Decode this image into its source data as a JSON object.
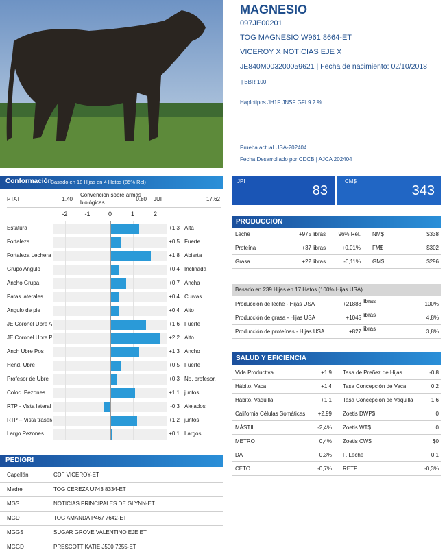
{
  "animal": {
    "name": "MAGNESIO",
    "code": "097JE00201",
    "registered_name": "TOG MAGNESIO W961 8664-ET",
    "sire_line": "VICEROY X NOTICIAS EJE X",
    "id_birth": "JE840M003200059621 | Fecha de nacimiento: 02/10/2018",
    "bbr": "|  BBR 100",
    "haplotypes": "Haplotipos JH1F JNSF GFI 9.2 %",
    "test": "Prueba actual USA-202404",
    "developed": "Fecha Desarrollado por CDCB | AJCA 202404"
  },
  "conformation": {
    "title": "Conformación",
    "subtitle": "Basado en 18 Hijas en 4 Hatos (85% Rel)",
    "ptat_label": "PTAT",
    "ptat": "1.40",
    "convention_label": "Convención sobre armas biológicas",
    "convention": "0.80",
    "jui_label": "JUI",
    "jui": "17.62",
    "xlim": [
      -2.5,
      2.5
    ],
    "xticks": [
      -2,
      -1,
      0,
      1,
      2
    ],
    "traits": [
      {
        "name": "Estatura",
        "value": 1.3,
        "label": "+1.3",
        "desc": "Alta"
      },
      {
        "name": "Fortaleza",
        "value": 0.5,
        "label": "+0.5",
        "desc": "Fuerte"
      },
      {
        "name": "Fortaleza Lechera",
        "value": 1.8,
        "label": "+1.8",
        "desc": "Abierta"
      },
      {
        "name": "Grupo Angulo",
        "value": 0.4,
        "label": "+0.4",
        "desc": "Inclinada"
      },
      {
        "name": "Ancho Grupa",
        "value": 0.7,
        "label": "+0.7",
        "desc": "Ancha"
      },
      {
        "name": "Patas laterales",
        "value": 0.4,
        "label": "+0.4",
        "desc": "Curvas"
      },
      {
        "name": "Angulo de pie",
        "value": 0.4,
        "label": "+0.4",
        "desc": "Alto"
      },
      {
        "name": "JE Coronel Ubre Ar",
        "value": 1.6,
        "label": "+1.6",
        "desc": "Fuerte"
      },
      {
        "name": "JE Coronel Ubre Po",
        "value": 2.2,
        "label": "+2.2",
        "desc": "Alto"
      },
      {
        "name": "Anch Ubre Pos",
        "value": 1.3,
        "label": "+1.3",
        "desc": "Ancho"
      },
      {
        "name": "Hend. Ubre",
        "value": 0.5,
        "label": "+0.5",
        "desc": "Fuerte"
      },
      {
        "name": "Profesor de Ubre",
        "value": 0.3,
        "label": "+0.3",
        "desc": "No. profesor."
      },
      {
        "name": "Coloc. Pezones",
        "value": 1.1,
        "label": "+1.1",
        "desc": "juntos"
      },
      {
        "name": "RTP - Vista lateral",
        "value": -0.3,
        "label": "-0.3",
        "desc": "Alejados"
      },
      {
        "name": "RTP – Vista trasera",
        "value": 1.2,
        "label": "+1.2",
        "desc": "juntos"
      },
      {
        "name": "Largo Pezones",
        "value": 0.1,
        "label": "+0.1",
        "desc": "Largos"
      }
    ]
  },
  "pedigree": {
    "title": "PEDIGRÍ",
    "rows": [
      [
        "Capellán",
        "CDF VICEROY-ET"
      ],
      [
        "Madre",
        "TOG CEREZA U743 8334-ET"
      ],
      [
        "MGS",
        "NOTICIAS PRINCIPALES DE GLYNN-ET"
      ],
      [
        "MGD",
        "TOG AMANDA P467 7642-ET"
      ],
      [
        "MGGS",
        "SUGAR GROVE VALENTINO EJE ET"
      ],
      [
        "MGGD",
        "PRESCOTT KATIE J500 7255-ET"
      ]
    ]
  },
  "indexes": {
    "jpi_label": "JPI",
    "jpi": "83",
    "cm_label": "CM$",
    "cm": "343"
  },
  "production": {
    "title": "PRODUCCIÓN",
    "rows": [
      [
        "Leche",
        "+975",
        "libras",
        "96% Rel.",
        "NM$",
        "$338"
      ],
      [
        "Proteína",
        "+37",
        "libras",
        "+0,01%",
        "FM$",
        "$302"
      ],
      [
        "Grasa",
        "+22",
        "libras",
        "-0,11%",
        "GM$",
        "$296"
      ]
    ]
  },
  "daughters": {
    "title": "Basado en 239 Hijas en 17 Hatos (100% Hijas USA)",
    "rows": [
      [
        "Producción de leche - Hijas USA",
        "+21888",
        "libras",
        "100%"
      ],
      [
        "Producción de grasa - Hijas USA",
        "+1045",
        "libras",
        "4,8%"
      ],
      [
        "Producción de proteínas - Hijas USA",
        "+827",
        "libras",
        "3,8%"
      ]
    ]
  },
  "health": {
    "title": "SALUD Y EFICIENCIA",
    "rows": [
      [
        "Vida Productiva",
        "+1.9",
        "Tasa de Preñez de Hijas",
        "-0.8"
      ],
      [
        "Hábito. Vaca",
        "+1.4",
        "Tasa Concepción de Vaca",
        "0.2"
      ],
      [
        "Hábito. Vaquilla",
        "+1.1",
        "Tasa Concepción de Vaquilla",
        "1.6"
      ],
      [
        "California Células Somáticas",
        "+2,99",
        "Zoetis DWP$",
        "0"
      ],
      [
        "MÁSTIL",
        "-2,4%",
        "Zoetis WT$",
        "0"
      ],
      [
        "METRO",
        "0,4%",
        "Zoetis CW$",
        "$0"
      ],
      [
        "DA",
        "0,3%",
        "F. Leche",
        "0.1"
      ],
      [
        "CETO",
        "-0,7%",
        "RETP",
        "-0,3%"
      ]
    ]
  }
}
